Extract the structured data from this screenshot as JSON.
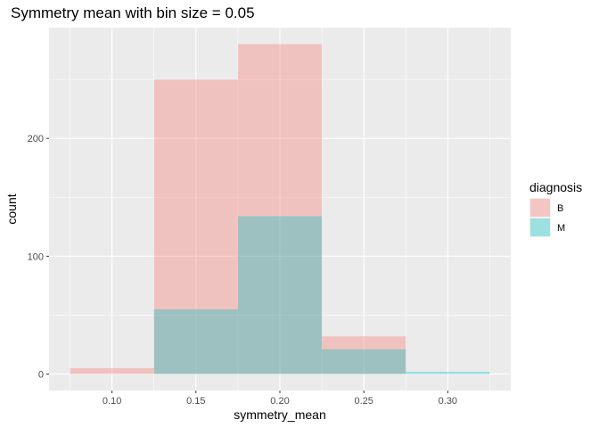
{
  "chart_data": {
    "type": "bar",
    "subtype": "overlapping-histogram",
    "title": "Symmetry mean with bin size = 0.05",
    "xlabel": "symmetry_mean",
    "ylabel": "count",
    "bin_width": 0.05,
    "bins": [
      [
        0.075,
        0.125
      ],
      [
        0.125,
        0.175
      ],
      [
        0.175,
        0.225
      ],
      [
        0.225,
        0.275
      ],
      [
        0.275,
        0.325
      ]
    ],
    "xlim": [
      0.0625,
      0.3375
    ],
    "ylim": [
      -14,
      294
    ],
    "x_ticks": [
      0.1,
      0.15,
      0.2,
      0.25,
      0.3
    ],
    "x_tick_labels": [
      "0.10",
      "0.15",
      "0.20",
      "0.25",
      "0.30"
    ],
    "y_ticks": [
      0,
      100,
      200
    ],
    "y_tick_labels": [
      "0",
      "100",
      "200"
    ],
    "grid": true,
    "legend_position": "right",
    "legend_title": "diagnosis",
    "series": [
      {
        "name": "B",
        "color": "#F8766D",
        "values": [
          5,
          250,
          280,
          32,
          0
        ]
      },
      {
        "name": "M",
        "color": "#00BFC4",
        "values": [
          0,
          55,
          134,
          21,
          2
        ]
      }
    ]
  }
}
